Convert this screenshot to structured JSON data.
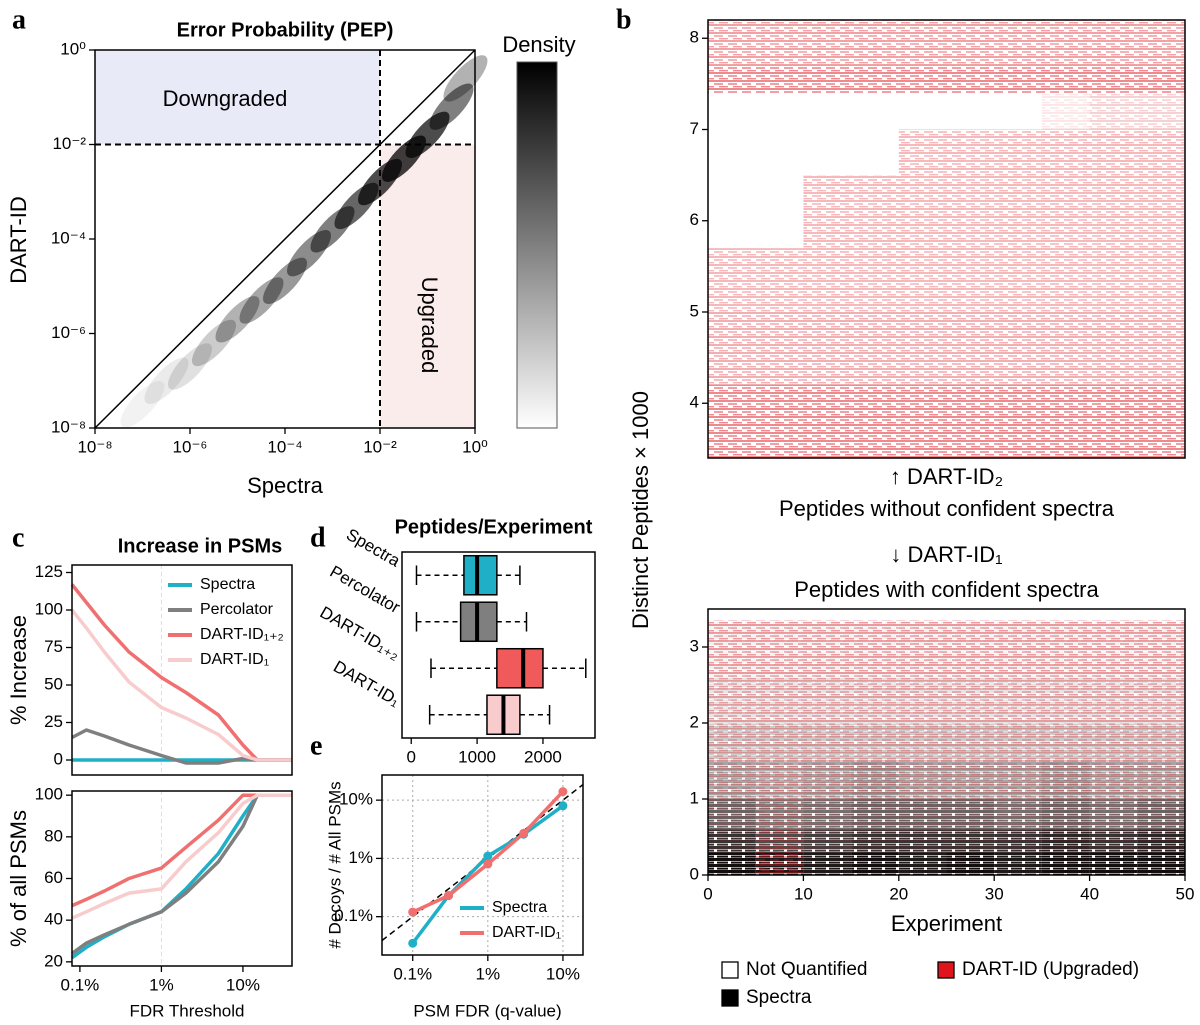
{
  "chart_data": [
    {
      "type": "density",
      "panel": "a",
      "title": "Error Probability (PEP)",
      "x_label": "Spectra",
      "y_label": "DART-ID",
      "log_x": true,
      "log_y": true,
      "diagonal": true,
      "xlim": [
        1e-08,
        1
      ],
      "ylim": [
        1e-08,
        1
      ],
      "xticks": [
        {
          "value": 1e-08,
          "label": "10⁻⁸"
        },
        {
          "value": 1e-06,
          "label": "10⁻⁶"
        },
        {
          "value": 0.0001,
          "label": "10⁻⁴"
        },
        {
          "value": 0.01,
          "label": "10⁻²"
        },
        {
          "value": 1,
          "label": "10⁰"
        }
      ],
      "yticks": [
        {
          "value": 1e-08,
          "label": "10⁻⁸"
        },
        {
          "value": 1e-06,
          "label": "10⁻⁶"
        },
        {
          "value": 0.0001,
          "label": "10⁻⁴"
        },
        {
          "value": 0.01,
          "label": "10⁻²"
        },
        {
          "value": 1,
          "label": "10⁰"
        }
      ],
      "threshold": 0.01,
      "downgraded_label": "Downgraded",
      "upgraded_label": "Upgraded",
      "downgraded_color": "#e9eaf8",
      "upgraded_color": "#fbecec",
      "colorbar_title": "Density",
      "cells": {
        "x": [
          1e-07,
          3.2e-07,
          1e-06,
          3.2e-06,
          1e-05,
          3.2e-05,
          0.0001,
          0.00032,
          0.001,
          0.0032,
          0.01,
          0.032,
          0.1,
          0.32,
          0.63
        ],
        "y": [
          3.2e-08,
          1e-07,
          2e-07,
          6.3e-07,
          2e-06,
          5e-06,
          1.3e-05,
          5e-05,
          0.00016,
          0.0005,
          0.0016,
          0.005,
          0.016,
          0.063,
          0.25
        ],
        "density": [
          0.05,
          0.08,
          0.12,
          0.2,
          0.3,
          0.35,
          0.4,
          0.45,
          0.5,
          0.6,
          0.7,
          0.75,
          0.7,
          0.5,
          0.3
        ]
      }
    },
    {
      "type": "heatmap",
      "panel": "b",
      "x_label": "Experiment",
      "y_label": "Distinct Peptides × 1000",
      "xlim": [
        0,
        50
      ],
      "xticks": [
        0,
        10,
        20,
        30,
        40,
        50
      ],
      "column_edges": [
        0,
        5,
        10,
        15,
        20,
        25,
        30,
        35,
        40,
        45,
        50
      ],
      "upper": {
        "ylim": [
          3.4,
          8.2
        ],
        "yticks": [
          4,
          5,
          6,
          7,
          8
        ],
        "row_edges": [
          3.4,
          4.2,
          5.0,
          5.7,
          6.5,
          7.0,
          7.4,
          7.7,
          8.2
        ],
        "upgraded": [
          [
            0.5,
            0.5,
            0.5,
            0.5,
            0.5,
            0.5,
            0.5,
            0.5,
            0.5,
            0.5
          ],
          [
            0.35,
            0.35,
            0.35,
            0.35,
            0.35,
            0.35,
            0.35,
            0.35,
            0.35,
            0.35
          ],
          [
            0.3,
            0.3,
            0.3,
            0.3,
            0.3,
            0.3,
            0.3,
            0.3,
            0.3,
            0.3
          ],
          [
            0,
            0,
            0.3,
            0.3,
            0.3,
            0.3,
            0.3,
            0.3,
            0.3,
            0.3
          ],
          [
            0,
            0,
            0,
            0,
            0.3,
            0.3,
            0.3,
            0.3,
            0.3,
            0.3
          ],
          [
            0,
            0,
            0,
            0,
            0,
            0,
            0,
            0.1,
            0.2,
            0.2
          ],
          [
            0.5,
            0.5,
            0.5,
            0.5,
            0.5,
            0.5,
            0.5,
            0.5,
            0.5,
            0.5
          ],
          [
            0.4,
            0.4,
            0.4,
            0.4,
            0.4,
            0.4,
            0.4,
            0.4,
            0.4,
            0.4
          ]
        ]
      },
      "lower": {
        "ylim": [
          0,
          3.5
        ],
        "yticks": [
          0,
          1,
          2,
          3
        ],
        "row_edges": [
          0,
          0.3,
          0.6,
          1.0,
          1.5,
          2.0,
          2.6,
          3.35
        ],
        "spectra": [
          [
            0.95,
            0.9,
            0.9,
            0.95,
            0.9,
            0.95,
            0.9,
            0.95,
            0.95,
            0.95
          ],
          [
            0.8,
            0.7,
            0.75,
            0.8,
            0.8,
            0.8,
            0.8,
            0.85,
            0.8,
            0.85
          ],
          [
            0.6,
            0.5,
            0.55,
            0.6,
            0.6,
            0.6,
            0.55,
            0.6,
            0.55,
            0.6
          ],
          [
            0.35,
            0.3,
            0.35,
            0.4,
            0.35,
            0.35,
            0.35,
            0.4,
            0.35,
            0.35
          ],
          [
            0.2,
            0.2,
            0.2,
            0.2,
            0.2,
            0.2,
            0.2,
            0.2,
            0.2,
            0.2
          ],
          [
            0.1,
            0.1,
            0.1,
            0.1,
            0.1,
            0.1,
            0.1,
            0.1,
            0.1,
            0.1
          ],
          [
            0.05,
            0.05,
            0.05,
            0.05,
            0.05,
            0.05,
            0.05,
            0.05,
            0.05,
            0.05
          ]
        ],
        "upgraded": [
          [
            0.05,
            0.4,
            0.05,
            0.05,
            0.05,
            0.05,
            0.05,
            0.05,
            0.05,
            0.05
          ],
          [
            0.1,
            0.3,
            0.1,
            0.1,
            0.1,
            0.1,
            0.1,
            0.1,
            0.1,
            0.1
          ],
          [
            0.15,
            0.25,
            0.15,
            0.15,
            0.15,
            0.15,
            0.15,
            0.15,
            0.15,
            0.15
          ],
          [
            0.25,
            0.3,
            0.25,
            0.25,
            0.25,
            0.25,
            0.25,
            0.25,
            0.25,
            0.25
          ],
          [
            0.3,
            0.3,
            0.3,
            0.3,
            0.3,
            0.3,
            0.3,
            0.3,
            0.3,
            0.3
          ],
          [
            0.35,
            0.35,
            0.35,
            0.35,
            0.35,
            0.35,
            0.35,
            0.35,
            0.35,
            0.35
          ],
          [
            0.4,
            0.4,
            0.4,
            0.4,
            0.4,
            0.4,
            0.4,
            0.4,
            0.4,
            0.4
          ]
        ]
      },
      "upper_arrow_label": "↑ DART-ID₂",
      "upper_caption": "Peptides without confident spectra",
      "lower_arrow_label": "↓ DART-ID₁",
      "lower_caption": "Peptides with confident spectra",
      "legend": [
        {
          "name": "Not Quantified",
          "color": "#ffffff"
        },
        {
          "name": "DART-ID (Upgraded)",
          "color": "#e0141c"
        },
        {
          "name": "Spectra",
          "color": "#000000"
        }
      ]
    },
    {
      "type": "line",
      "panel": "c",
      "title": "Increase in PSMs",
      "y_label": "% Increase",
      "log_x": true,
      "xlim": [
        0.0008,
        0.4
      ],
      "ylim": [
        -10,
        130
      ],
      "yticks": [
        0,
        25,
        50,
        75,
        100,
        125
      ],
      "reference_x": 0.01,
      "x": [
        0.0008,
        0.0012,
        0.002,
        0.004,
        0.01,
        0.02,
        0.05,
        0.1,
        0.15,
        0.2,
        0.4
      ],
      "series": [
        {
          "name": "Spectra",
          "color": "#1fb0c8",
          "values": [
            0,
            0,
            0,
            0,
            0,
            0,
            0,
            0,
            0,
            0,
            0
          ]
        },
        {
          "name": "Percolator",
          "color": "#7f7f7f",
          "values": [
            15,
            20,
            16,
            10,
            3,
            -2,
            -2,
            1,
            0,
            0,
            0
          ]
        },
        {
          "name": "DART-ID₁₊₂",
          "color": "#f07070",
          "values": [
            117,
            105,
            90,
            72,
            55,
            45,
            30,
            10,
            0,
            0,
            0
          ]
        },
        {
          "name": "DART-ID₁",
          "color": "#f8cccc",
          "values": [
            100,
            88,
            72,
            52,
            35,
            28,
            17,
            3,
            0,
            0,
            0
          ]
        }
      ]
    },
    {
      "type": "line",
      "x_label": "FDR Threshold",
      "y_label": "% of all PSMs",
      "log_x": true,
      "xlim": [
        0.0008,
        0.4
      ],
      "ylim": [
        18,
        102
      ],
      "yticks": [
        20,
        40,
        60,
        80,
        100
      ],
      "reference_x": 0.01,
      "xticks": [
        {
          "value": 0.001,
          "label": "0.1%"
        },
        {
          "value": 0.01,
          "label": "1%"
        },
        {
          "value": 0.1,
          "label": "10%"
        }
      ],
      "x": [
        0.0008,
        0.0012,
        0.002,
        0.004,
        0.01,
        0.02,
        0.05,
        0.1,
        0.15,
        0.2,
        0.4
      ],
      "series": [
        {
          "color": "#1fb0c8",
          "values": [
            22,
            27,
            32,
            38,
            44,
            55,
            72,
            90,
            100,
            100,
            100
          ]
        },
        {
          "color": "#7f7f7f",
          "values": [
            24,
            29,
            33,
            38,
            44,
            53,
            68,
            85,
            100,
            100,
            100
          ]
        },
        {
          "color": "#f07070",
          "values": [
            47,
            50,
            54,
            60,
            65,
            75,
            88,
            100,
            100,
            100,
            100
          ]
        },
        {
          "color": "#f8cccc",
          "values": [
            41,
            44,
            48,
            53,
            55,
            68,
            82,
            96,
            100,
            100,
            100
          ]
        }
      ]
    },
    {
      "type": "box",
      "panel": "d",
      "title": "Peptides/Experiment",
      "categories": [
        "Spectra",
        "Percolator",
        "DART-ID₁₊₂",
        "DART-ID₁"
      ],
      "colors": [
        "#1fb0c8",
        "#7f7f7f",
        "#f05a5a",
        "#f8cccc"
      ],
      "min": [
        80,
        80,
        300,
        280
      ],
      "q1": [
        800,
        750,
        1300,
        1150
      ],
      "median": [
        1000,
        1000,
        1700,
        1400
      ],
      "q3": [
        1300,
        1300,
        2000,
        1650
      ],
      "max": [
        1650,
        1750,
        2650,
        2100
      ],
      "xlim": [
        -140,
        2790
      ],
      "xticks": [
        0,
        1000,
        2000
      ]
    },
    {
      "type": "line",
      "panel": "e",
      "x_label": "PSM FDR (q-value)",
      "y_label": "# Decoys / # All PSMs",
      "log_x": true,
      "log_y": true,
      "grid": true,
      "markers": true,
      "diagonal": true,
      "xlim": [
        0.00039,
        0.185
      ],
      "ylim": [
        0.00022,
        0.27
      ],
      "xticks": [
        {
          "value": 0.001,
          "label": "0.1%"
        },
        {
          "value": 0.01,
          "label": "1%"
        },
        {
          "value": 0.1,
          "label": "10%"
        }
      ],
      "yticks": [
        {
          "value": 0.001,
          "label": "0.1%"
        },
        {
          "value": 0.01,
          "label": "1%"
        },
        {
          "value": 0.1,
          "label": "10%"
        }
      ],
      "x": [
        0.001,
        0.003,
        0.01,
        0.03,
        0.1
      ],
      "series": [
        {
          "name": "Spectra",
          "color": "#1fb0c8",
          "values": [
            0.00035,
            0.0023,
            0.011,
            0.026,
            0.08
          ]
        },
        {
          "name": "DART-ID₁",
          "color": "#f07070",
          "values": [
            0.0012,
            0.0023,
            0.008,
            0.027,
            0.14
          ]
        }
      ]
    }
  ]
}
